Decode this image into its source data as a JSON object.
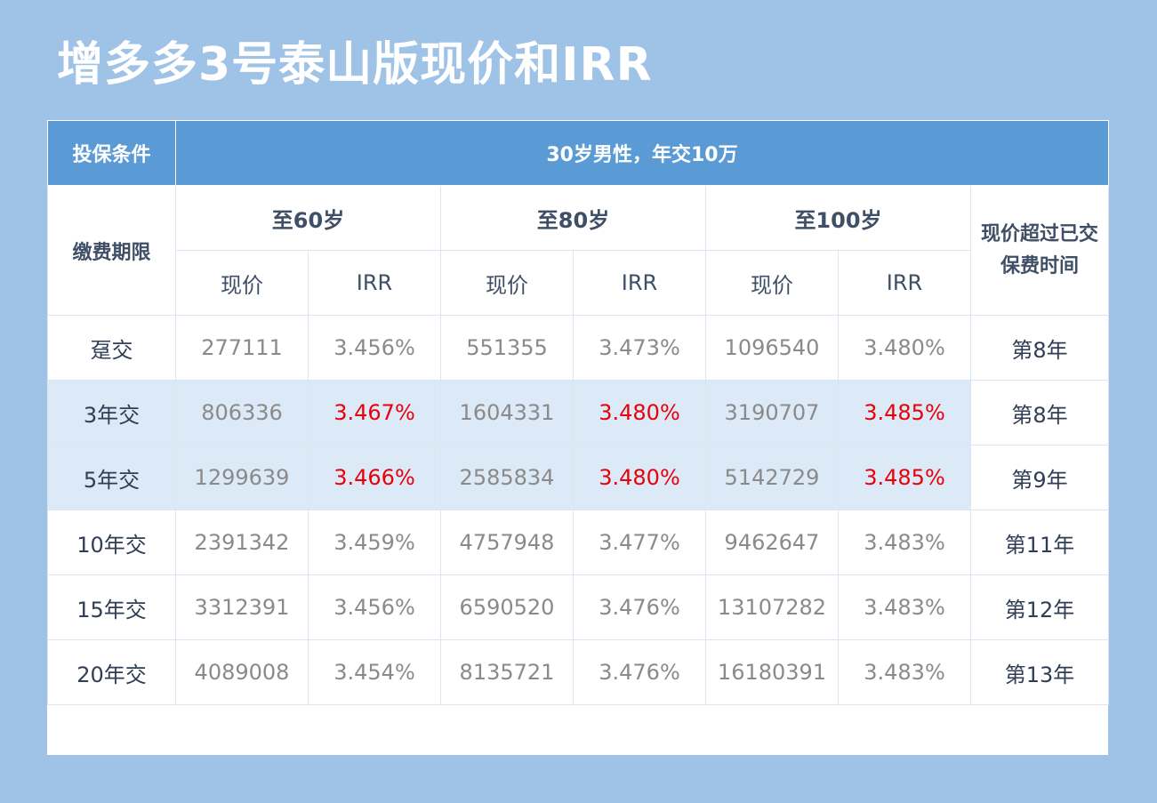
{
  "title": "增多多3号泰山版现价和IRR",
  "table": {
    "condition_label": "投保条件",
    "condition_value": "30岁男性，年交10万",
    "term_label": "缴费期限",
    "groups": [
      "至60岁",
      "至80岁",
      "至100岁"
    ],
    "sub_cash": "现价",
    "sub_irr": "IRR",
    "breakeven_label": "现价超过已交保费时间",
    "rows": [
      {
        "term": "趸交",
        "v1": "277111",
        "i1": "3.456%",
        "v2": "551355",
        "i2": "3.473%",
        "v3": "1096540",
        "i3": "3.480%",
        "year": "第8年",
        "highlight": false
      },
      {
        "term": "3年交",
        "v1": "806336",
        "i1": "3.467%",
        "v2": "1604331",
        "i2": "3.480%",
        "v3": "3190707",
        "i3": "3.485%",
        "year": "第8年",
        "highlight": true
      },
      {
        "term": "5年交",
        "v1": "1299639",
        "i1": "3.466%",
        "v2": "2585834",
        "i2": "3.480%",
        "v3": "5142729",
        "i3": "3.485%",
        "year": "第9年",
        "highlight": true
      },
      {
        "term": "10年交",
        "v1": "2391342",
        "i1": "3.459%",
        "v2": "4757948",
        "i2": "3.477%",
        "v3": "9462647",
        "i3": "3.483%",
        "year": "第11年",
        "highlight": false
      },
      {
        "term": "15年交",
        "v1": "3312391",
        "i1": "3.456%",
        "v2": "6590520",
        "i2": "3.476%",
        "v3": "13107282",
        "i3": "3.483%",
        "year": "第12年",
        "highlight": false
      },
      {
        "term": "20年交",
        "v1": "4089008",
        "i1": "3.454%",
        "v2": "8135721",
        "i2": "3.476%",
        "v3": "16180391",
        "i3": "3.483%",
        "year": "第13年",
        "highlight": false
      }
    ]
  },
  "colors": {
    "background": "#9fc2e7",
    "header_blue": "#5b9bd5",
    "highlight_row": "#dce9f6",
    "irr_highlight": "#e8000b"
  }
}
